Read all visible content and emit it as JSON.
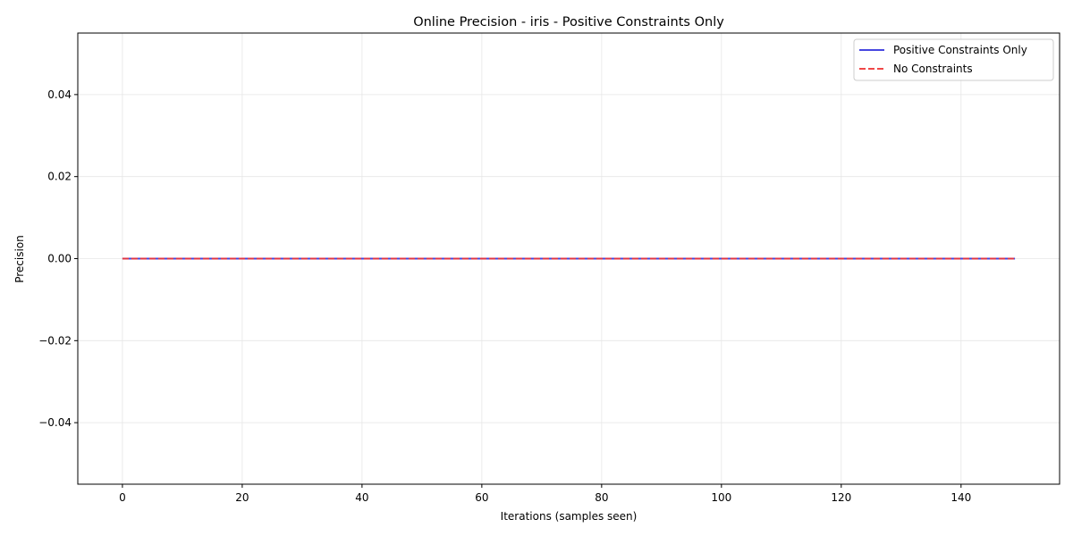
{
  "chart_data": {
    "type": "line",
    "title": "Online Precision - iris - Positive Constraints Only",
    "xlabel": "Iterations (samples seen)",
    "ylabel": "Precision",
    "xlim": [
      -7.45,
      156.45
    ],
    "ylim": [
      -0.055,
      0.055
    ],
    "xticks": [
      0,
      20,
      40,
      60,
      80,
      100,
      120,
      140
    ],
    "xtick_labels": [
      "0",
      "20",
      "40",
      "60",
      "80",
      "100",
      "120",
      "140"
    ],
    "yticks": [
      -0.04,
      -0.02,
      0.0,
      0.02,
      0.04
    ],
    "ytick_labels": [
      "−0.04",
      "−0.02",
      "0.00",
      "0.02",
      "0.04"
    ],
    "grid": true,
    "legend_position": "top-right",
    "series": [
      {
        "name": "Positive Constraints Only",
        "color": "#3333dd",
        "style": "solid",
        "x": [
          0,
          149
        ],
        "y": [
          0.0,
          0.0
        ]
      },
      {
        "name": "No Constraints",
        "color": "#ee3333",
        "style": "dashed",
        "x": [
          0,
          149
        ],
        "y": [
          0.0,
          0.0
        ]
      }
    ]
  }
}
